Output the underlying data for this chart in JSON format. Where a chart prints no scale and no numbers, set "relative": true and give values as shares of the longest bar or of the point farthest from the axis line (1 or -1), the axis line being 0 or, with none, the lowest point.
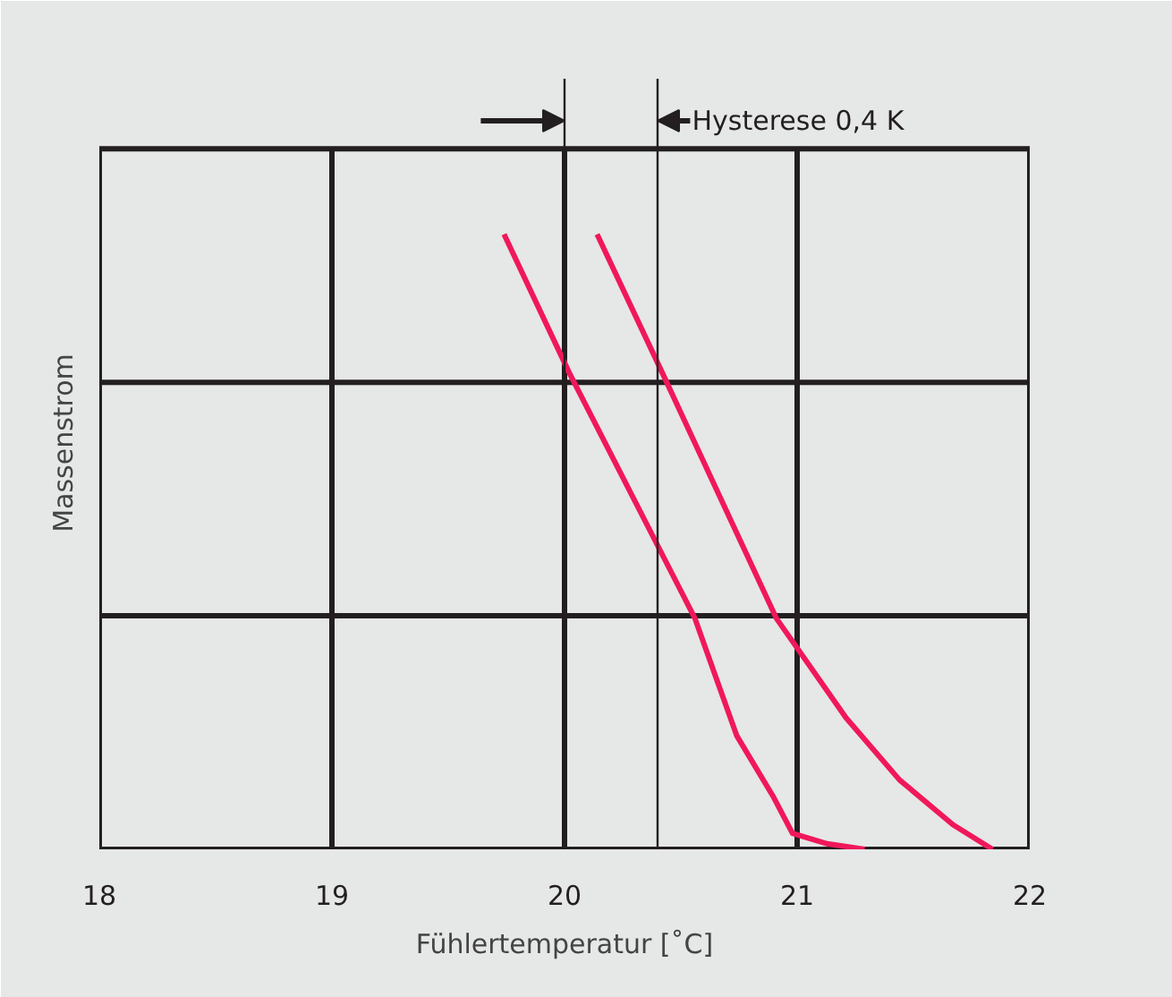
{
  "chart_data": {
    "type": "line",
    "relative": true,
    "xlabel": "Fühlertemperatur [˚C]",
    "ylabel": "Massenstrom",
    "xlim": [
      18,
      22
    ],
    "xticks": [
      18,
      19,
      20,
      21,
      22
    ],
    "grid": true,
    "line_style": "solid",
    "series": [
      {
        "color": "#f0185a",
        "x": [
          19.74,
          20.02,
          20.56,
          20.74,
          20.9,
          20.98,
          21.13,
          21.29
        ],
        "values": [
          1,
          0.775,
          0.376,
          0.185,
          0.084,
          0.026,
          0.009,
          0
        ]
      },
      {
        "color": "#f0185a",
        "x": [
          20.14,
          20.42,
          20.91,
          21.21,
          21.44,
          21.67,
          21.84
        ],
        "values": [
          1,
          0.775,
          0.376,
          0.214,
          0.113,
          0.04,
          0
        ]
      }
    ],
    "ref_lines": [
      {
        "axis": "x",
        "value": 20,
        "color": "#231f20"
      },
      {
        "axis": "x",
        "value": 20.4,
        "color": "#231f20"
      }
    ],
    "annotations": [
      "Hysterese 0,4 K"
    ]
  }
}
